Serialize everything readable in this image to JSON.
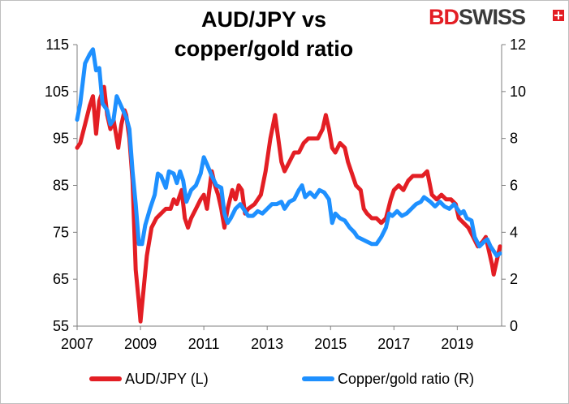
{
  "chart_data": {
    "type": "line",
    "title_line1": "AUD/JPY vs",
    "title_line2": "copper/gold ratio",
    "logo": {
      "part1": "BD",
      "part2": "SWISS"
    },
    "x_ticks": [
      "2007",
      "2009",
      "2011",
      "2013",
      "2015",
      "2017",
      "2019"
    ],
    "xlim": [
      2007,
      2020.4
    ],
    "y_left": {
      "ticks": [
        "115",
        "105",
        "95",
        "85",
        "75",
        "65",
        "55"
      ],
      "ylim": [
        55,
        115
      ]
    },
    "y_right": {
      "ticks": [
        "12",
        "10",
        "8",
        "6",
        "4",
        "2",
        "0"
      ],
      "ylim": [
        0,
        12
      ]
    },
    "grid": false,
    "legend_placement": "bottom",
    "series": [
      {
        "name": "AUD/JPY (L)",
        "axis": "left",
        "color": "#e31e24",
        "points": [
          [
            2007.0,
            93
          ],
          [
            2007.1,
            94
          ],
          [
            2007.25,
            98
          ],
          [
            2007.4,
            102
          ],
          [
            2007.5,
            104
          ],
          [
            2007.6,
            96
          ],
          [
            2007.7,
            103
          ],
          [
            2007.85,
            106
          ],
          [
            2007.95,
            100
          ],
          [
            2008.05,
            97
          ],
          [
            2008.15,
            99
          ],
          [
            2008.3,
            93
          ],
          [
            2008.4,
            98
          ],
          [
            2008.5,
            101
          ],
          [
            2008.55,
            100
          ],
          [
            2008.65,
            95
          ],
          [
            2008.75,
            86
          ],
          [
            2008.85,
            67
          ],
          [
            2008.95,
            60
          ],
          [
            2009.0,
            56
          ],
          [
            2009.1,
            63
          ],
          [
            2009.2,
            70
          ],
          [
            2009.35,
            76
          ],
          [
            2009.5,
            78
          ],
          [
            2009.65,
            79
          ],
          [
            2009.8,
            80
          ],
          [
            2009.95,
            80
          ],
          [
            2010.05,
            82
          ],
          [
            2010.15,
            81
          ],
          [
            2010.3,
            84
          ],
          [
            2010.4,
            78
          ],
          [
            2010.5,
            76
          ],
          [
            2010.6,
            78
          ],
          [
            2010.75,
            80
          ],
          [
            2010.9,
            82
          ],
          [
            2011.0,
            83
          ],
          [
            2011.1,
            80
          ],
          [
            2011.25,
            88
          ],
          [
            2011.35,
            85
          ],
          [
            2011.45,
            83
          ],
          [
            2011.55,
            80
          ],
          [
            2011.65,
            76
          ],
          [
            2011.75,
            80
          ],
          [
            2011.9,
            84
          ],
          [
            2012.0,
            82
          ],
          [
            2012.1,
            85
          ],
          [
            2012.2,
            84
          ],
          [
            2012.3,
            79
          ],
          [
            2012.4,
            80
          ],
          [
            2012.6,
            81
          ],
          [
            2012.8,
            83
          ],
          [
            2012.95,
            88
          ],
          [
            2013.1,
            95
          ],
          [
            2013.25,
            100
          ],
          [
            2013.35,
            95
          ],
          [
            2013.45,
            90
          ],
          [
            2013.55,
            88
          ],
          [
            2013.7,
            90
          ],
          [
            2013.85,
            92
          ],
          [
            2014.0,
            92
          ],
          [
            2014.15,
            94
          ],
          [
            2014.3,
            95
          ],
          [
            2014.45,
            95
          ],
          [
            2014.6,
            95
          ],
          [
            2014.75,
            97
          ],
          [
            2014.85,
            100
          ],
          [
            2014.95,
            97
          ],
          [
            2015.05,
            93
          ],
          [
            2015.15,
            92
          ],
          [
            2015.3,
            94
          ],
          [
            2015.45,
            93
          ],
          [
            2015.55,
            90
          ],
          [
            2015.65,
            88
          ],
          [
            2015.8,
            85
          ],
          [
            2015.95,
            84
          ],
          [
            2016.05,
            80
          ],
          [
            2016.15,
            79
          ],
          [
            2016.3,
            78
          ],
          [
            2016.45,
            78
          ],
          [
            2016.6,
            77
          ],
          [
            2016.75,
            78
          ],
          [
            2016.9,
            82
          ],
          [
            2017.0,
            84
          ],
          [
            2017.15,
            85
          ],
          [
            2017.3,
            84
          ],
          [
            2017.45,
            86
          ],
          [
            2017.6,
            87
          ],
          [
            2017.75,
            87
          ],
          [
            2017.9,
            87
          ],
          [
            2018.05,
            88
          ],
          [
            2018.2,
            83
          ],
          [
            2018.35,
            82
          ],
          [
            2018.5,
            83
          ],
          [
            2018.65,
            82
          ],
          [
            2018.8,
            82
          ],
          [
            2018.95,
            81
          ],
          [
            2019.05,
            78
          ],
          [
            2019.2,
            77
          ],
          [
            2019.35,
            76
          ],
          [
            2019.5,
            74
          ],
          [
            2019.65,
            72
          ],
          [
            2019.8,
            73
          ],
          [
            2019.9,
            74
          ],
          [
            2020.0,
            71
          ],
          [
            2020.1,
            68
          ],
          [
            2020.15,
            66
          ],
          [
            2020.25,
            69
          ],
          [
            2020.35,
            72
          ]
        ]
      },
      {
        "name": "Copper/gold ratio (R)",
        "axis": "right",
        "color": "#1e90ff",
        "points": [
          [
            2007.0,
            8.8
          ],
          [
            2007.1,
            9.5
          ],
          [
            2007.25,
            11.2
          ],
          [
            2007.4,
            11.6
          ],
          [
            2007.5,
            11.8
          ],
          [
            2007.6,
            10.9
          ],
          [
            2007.7,
            11.0
          ],
          [
            2007.8,
            9.5
          ],
          [
            2007.95,
            9.2
          ],
          [
            2008.05,
            8.6
          ],
          [
            2008.15,
            8.8
          ],
          [
            2008.25,
            9.8
          ],
          [
            2008.35,
            9.5
          ],
          [
            2008.45,
            9.2
          ],
          [
            2008.55,
            8.9
          ],
          [
            2008.65,
            8.4
          ],
          [
            2008.75,
            6.6
          ],
          [
            2008.85,
            5.2
          ],
          [
            2008.95,
            3.5
          ],
          [
            2009.05,
            3.5
          ],
          [
            2009.15,
            4.3
          ],
          [
            2009.3,
            5.0
          ],
          [
            2009.45,
            5.6
          ],
          [
            2009.55,
            6.5
          ],
          [
            2009.65,
            6.4
          ],
          [
            2009.8,
            5.9
          ],
          [
            2009.9,
            6.6
          ],
          [
            2010.05,
            6.5
          ],
          [
            2010.15,
            6.1
          ],
          [
            2010.25,
            6.6
          ],
          [
            2010.35,
            6.2
          ],
          [
            2010.45,
            5.3
          ],
          [
            2010.6,
            5.8
          ],
          [
            2010.75,
            6.0
          ],
          [
            2010.9,
            6.5
          ],
          [
            2011.0,
            7.2
          ],
          [
            2011.1,
            6.9
          ],
          [
            2011.25,
            6.4
          ],
          [
            2011.4,
            6.0
          ],
          [
            2011.55,
            5.9
          ],
          [
            2011.65,
            4.8
          ],
          [
            2011.75,
            4.4
          ],
          [
            2011.85,
            4.6
          ],
          [
            2012.0,
            5.0
          ],
          [
            2012.15,
            5.2
          ],
          [
            2012.25,
            5.0
          ],
          [
            2012.4,
            4.7
          ],
          [
            2012.55,
            4.7
          ],
          [
            2012.7,
            4.9
          ],
          [
            2012.85,
            4.8
          ],
          [
            2013.0,
            5.0
          ],
          [
            2013.15,
            5.2
          ],
          [
            2013.3,
            5.2
          ],
          [
            2013.45,
            5.3
          ],
          [
            2013.55,
            5.0
          ],
          [
            2013.7,
            5.3
          ],
          [
            2013.85,
            5.4
          ],
          [
            2014.0,
            5.8
          ],
          [
            2014.1,
            6.0
          ],
          [
            2014.2,
            5.5
          ],
          [
            2014.35,
            5.7
          ],
          [
            2014.5,
            5.5
          ],
          [
            2014.65,
            5.8
          ],
          [
            2014.8,
            5.7
          ],
          [
            2014.95,
            5.4
          ],
          [
            2015.05,
            4.4
          ],
          [
            2015.15,
            4.8
          ],
          [
            2015.3,
            4.6
          ],
          [
            2015.45,
            4.5
          ],
          [
            2015.6,
            4.2
          ],
          [
            2015.75,
            4.0
          ],
          [
            2015.85,
            3.8
          ],
          [
            2016.0,
            3.7
          ],
          [
            2016.15,
            3.6
          ],
          [
            2016.3,
            3.5
          ],
          [
            2016.45,
            3.5
          ],
          [
            2016.6,
            3.8
          ],
          [
            2016.75,
            4.2
          ],
          [
            2016.85,
            4.8
          ],
          [
            2016.95,
            4.7
          ],
          [
            2017.1,
            4.9
          ],
          [
            2017.25,
            4.7
          ],
          [
            2017.4,
            4.8
          ],
          [
            2017.55,
            5.0
          ],
          [
            2017.7,
            5.2
          ],
          [
            2017.85,
            5.3
          ],
          [
            2017.95,
            5.5
          ],
          [
            2018.05,
            5.4
          ],
          [
            2018.15,
            5.3
          ],
          [
            2018.3,
            5.1
          ],
          [
            2018.45,
            5.3
          ],
          [
            2018.6,
            5.1
          ],
          [
            2018.75,
            5.0
          ],
          [
            2018.9,
            5.2
          ],
          [
            2019.0,
            5.0
          ],
          [
            2019.1,
            4.8
          ],
          [
            2019.2,
            4.9
          ],
          [
            2019.3,
            4.6
          ],
          [
            2019.45,
            4.5
          ],
          [
            2019.55,
            3.8
          ],
          [
            2019.7,
            3.4
          ],
          [
            2019.85,
            3.6
          ],
          [
            2019.95,
            3.7
          ],
          [
            2020.05,
            3.4
          ],
          [
            2020.15,
            3.2
          ],
          [
            2020.25,
            3.0
          ],
          [
            2020.35,
            3.1
          ]
        ]
      }
    ]
  }
}
